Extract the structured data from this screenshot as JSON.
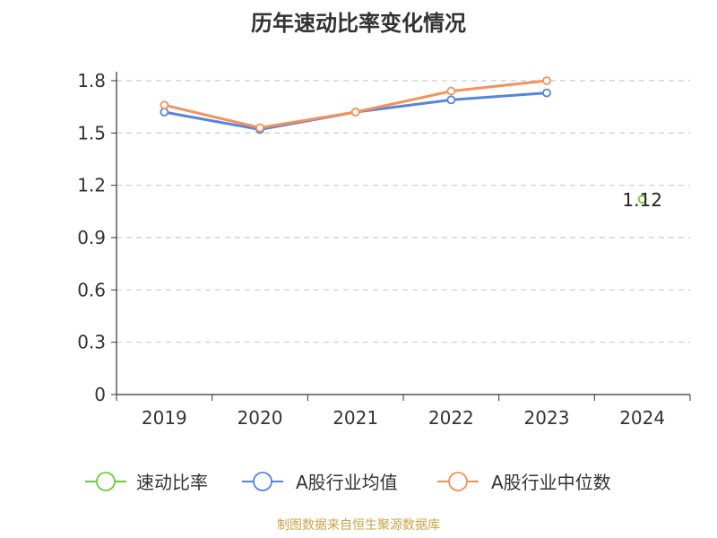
{
  "chart_data": {
    "type": "line",
    "title": "历年速动比率变化情况",
    "categories": [
      "2019",
      "2020",
      "2021",
      "2022",
      "2023",
      "2024"
    ],
    "ylim": [
      0,
      1.8
    ],
    "yticks": [
      "0",
      "0.3",
      "0.6",
      "0.9",
      "1.2",
      "1.5",
      "1.8"
    ],
    "grid": "horizontal dashed",
    "legend_position": "bottom",
    "series": [
      {
        "name": "速动比率",
        "color": "#6ccb3c",
        "values": [
          null,
          null,
          null,
          null,
          null,
          1.12
        ],
        "labels": [
          "",
          "",
          "",
          "",
          "",
          "1.12"
        ]
      },
      {
        "name": "A股行业均值",
        "color": "#5585dd",
        "values": [
          1.62,
          1.52,
          1.62,
          1.69,
          1.73,
          null
        ]
      },
      {
        "name": "A股行业中位数",
        "color": "#f5915a",
        "values": [
          1.66,
          1.53,
          1.62,
          1.74,
          1.8,
          null
        ]
      }
    ],
    "source": "制图数据来自恒生聚源数据库"
  }
}
